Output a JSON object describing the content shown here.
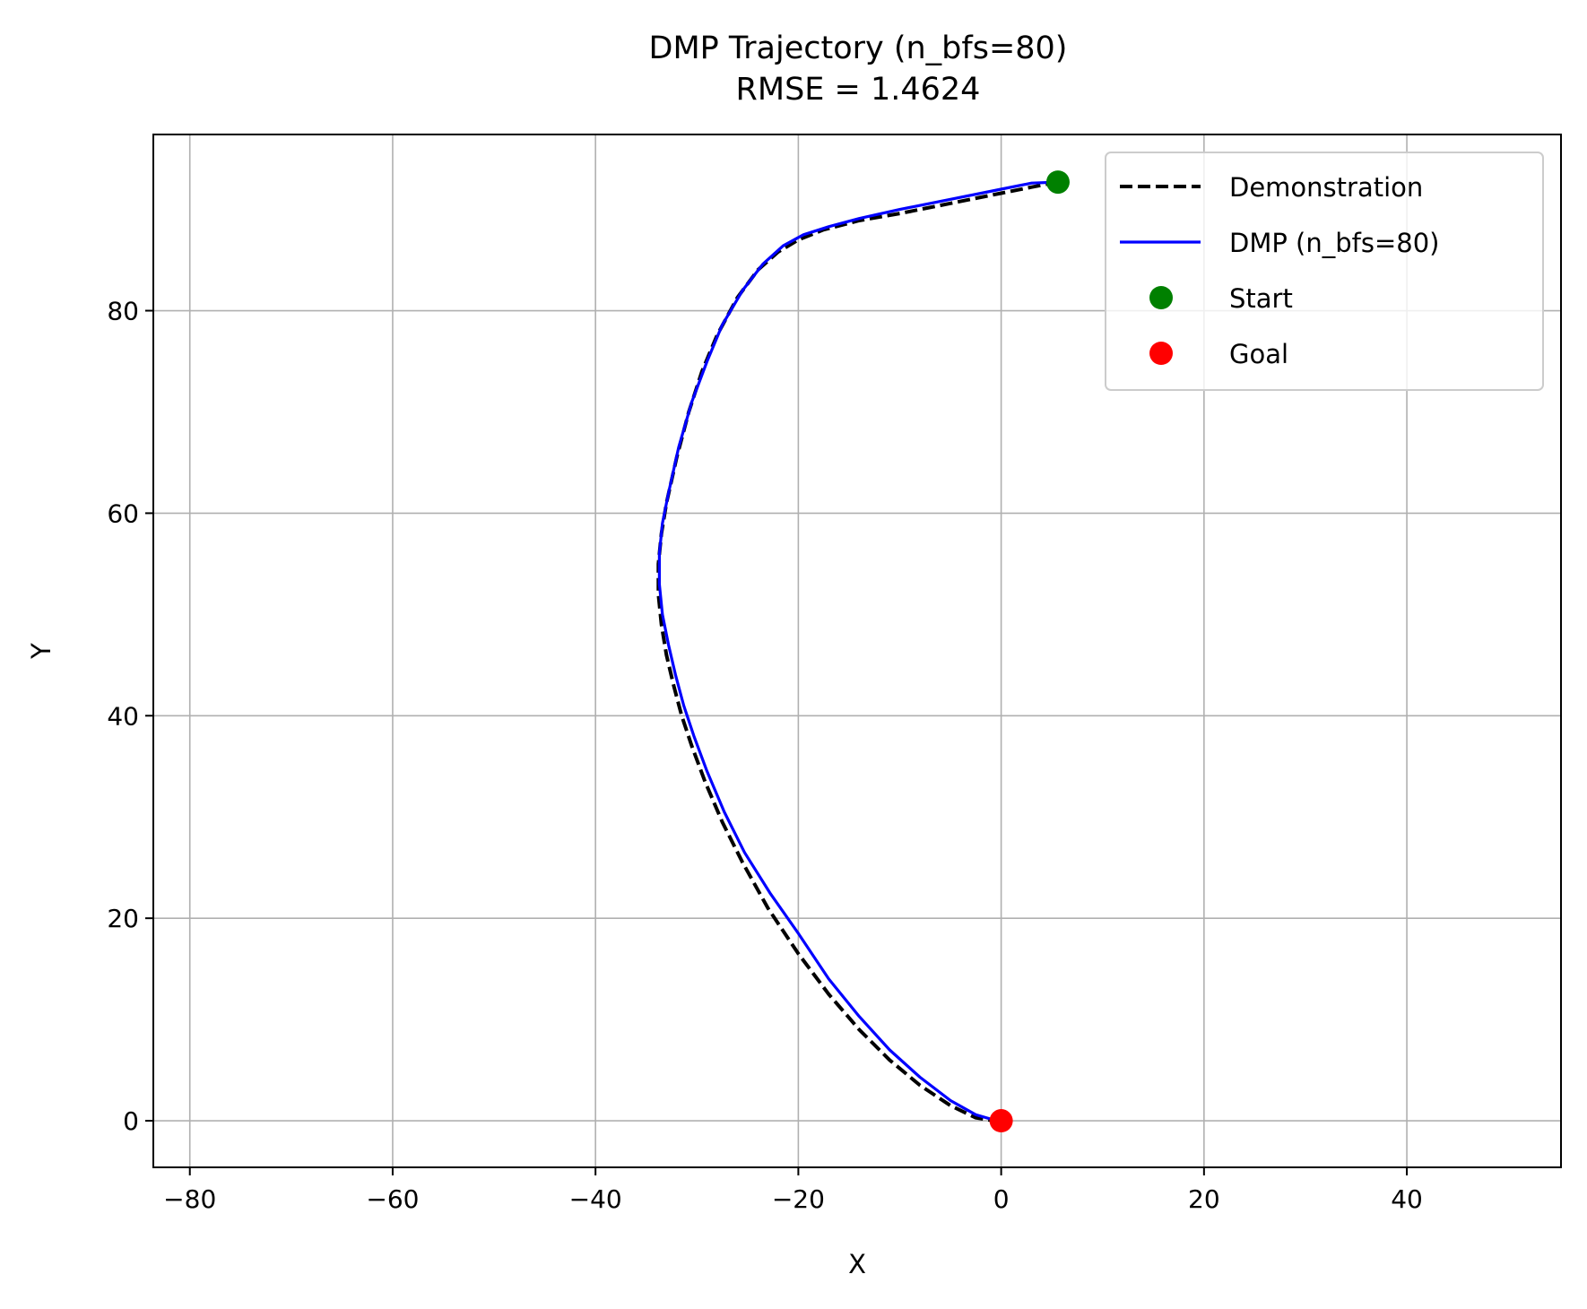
{
  "chart_data": {
    "type": "line",
    "title": "DMP Trajectory (n_bfs=80)",
    "subtitle": "RMSE = 1.4624",
    "xlabel": "X",
    "ylabel": "Y",
    "xlim": [
      -83.6,
      55.2
    ],
    "ylim": [
      -4.6,
      97.4
    ],
    "xticks": [
      -80,
      -60,
      -40,
      -20,
      0,
      20,
      40
    ],
    "yticks": [
      0,
      20,
      40,
      60,
      80
    ],
    "xtick_labels": [
      "−80",
      "−60",
      "−40",
      "−20",
      "0",
      "20",
      "40"
    ],
    "ytick_labels": [
      "0",
      "20",
      "40",
      "60",
      "80"
    ],
    "grid": true,
    "legend_position": "top-right",
    "series": [
      {
        "name": "Demonstration",
        "style": "dashed",
        "color": "#000000",
        "x": [
          5.6,
          3.0,
          0.0,
          -5.0,
          -10.0,
          -14.0,
          -17.5,
          -20.0,
          -22.0,
          -24.0,
          -26.0,
          -28.0,
          -29.5,
          -30.8,
          -32.0,
          -33.0,
          -33.5,
          -33.8,
          -33.8,
          -33.5,
          -33.0,
          -32.3,
          -31.5,
          -30.5,
          -29.2,
          -27.5,
          -25.5,
          -23.0,
          -20.0,
          -17.0,
          -14.0,
          -11.0,
          -8.0,
          -5.0,
          -2.5,
          -0.8,
          0.0
        ],
        "y": [
          92.7,
          92.2,
          91.6,
          90.6,
          89.6,
          88.9,
          88.0,
          87.0,
          85.8,
          84.0,
          81.3,
          77.6,
          74.0,
          70.0,
          65.5,
          61.0,
          58.0,
          55.0,
          52.0,
          49.0,
          46.0,
          43.0,
          40.0,
          37.0,
          33.5,
          29.5,
          25.5,
          21.0,
          16.5,
          12.5,
          9.0,
          6.0,
          3.5,
          1.5,
          0.3,
          0.0,
          0.0
        ]
      },
      {
        "name": "DMP (n_bfs=80)",
        "style": "solid",
        "color": "#0000ff",
        "x": [
          5.6,
          3.0,
          0.0,
          -5.0,
          -10.0,
          -14.0,
          -17.0,
          -19.5,
          -21.5,
          -23.5,
          -25.5,
          -27.5,
          -29.0,
          -30.5,
          -31.8,
          -32.8,
          -33.4,
          -33.7,
          -33.7,
          -33.4,
          -32.8,
          -32.1,
          -31.3,
          -30.3,
          -29.0,
          -27.3,
          -25.3,
          -22.8,
          -20.0,
          -17.0,
          -14.0,
          -11.0,
          -8.0,
          -5.0,
          -2.5,
          -0.8,
          0.0
        ],
        "y": [
          92.7,
          92.6,
          92.0,
          91.0,
          90.0,
          89.1,
          88.3,
          87.5,
          86.4,
          84.6,
          82.0,
          78.6,
          75.0,
          71.0,
          66.5,
          62.0,
          59.0,
          56.0,
          53.0,
          50.0,
          47.0,
          44.0,
          41.0,
          38.0,
          34.5,
          30.5,
          26.5,
          22.5,
          18.5,
          14.0,
          10.3,
          7.0,
          4.3,
          2.0,
          0.6,
          0.1,
          0.0
        ]
      },
      {
        "name": "Start",
        "type": "scatter",
        "color": "#008000",
        "x": [
          5.6
        ],
        "y": [
          92.7
        ]
      },
      {
        "name": "Goal",
        "type": "scatter",
        "color": "#ff0000",
        "x": [
          0.0
        ],
        "y": [
          0.0
        ]
      }
    ]
  }
}
